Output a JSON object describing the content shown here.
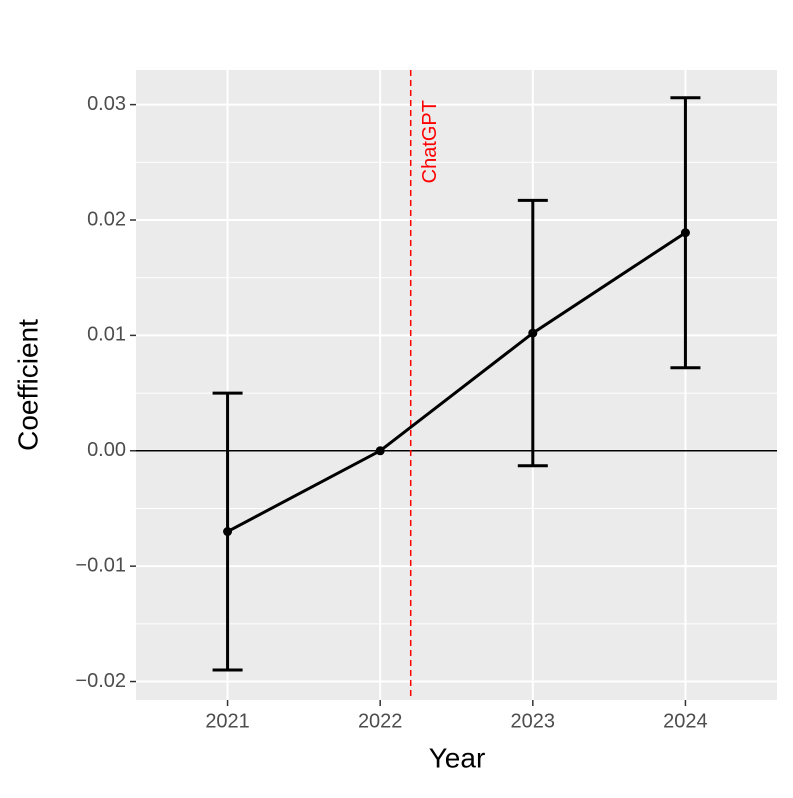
{
  "chart_data": {
    "type": "line",
    "x_label": "Year",
    "y_label": "Coefficient",
    "x": [
      2021,
      2022,
      2023,
      2024
    ],
    "series": [
      {
        "color": "#000000",
        "values": [
          -0.007,
          0,
          0.0102,
          0.0189
        ],
        "lower": [
          -0.019,
          null,
          -0.0013,
          0.0072
        ],
        "upper": [
          0.005,
          null,
          0.0217,
          0.0306
        ]
      }
    ],
    "xlim": [
      2020.4,
      2024.6
    ],
    "xticks": [
      2021,
      2022,
      2023,
      2024
    ],
    "ylim": [
      -0.0216,
      0.033
    ],
    "yticks": [
      {
        "value": -0.02,
        "label": "−0.02"
      },
      {
        "value": -0.01,
        "label": "−0.01"
      },
      {
        "value": 0,
        "label": "0.00"
      },
      {
        "value": 0.01,
        "label": "0.01"
      },
      {
        "value": 0.02,
        "label": "0.02"
      },
      {
        "value": 0.03,
        "label": "0.03"
      }
    ],
    "hline": 0,
    "vline": {
      "x": 2022.2,
      "label": "ChatGPT",
      "color": "#ff0000"
    },
    "grid": true
  }
}
